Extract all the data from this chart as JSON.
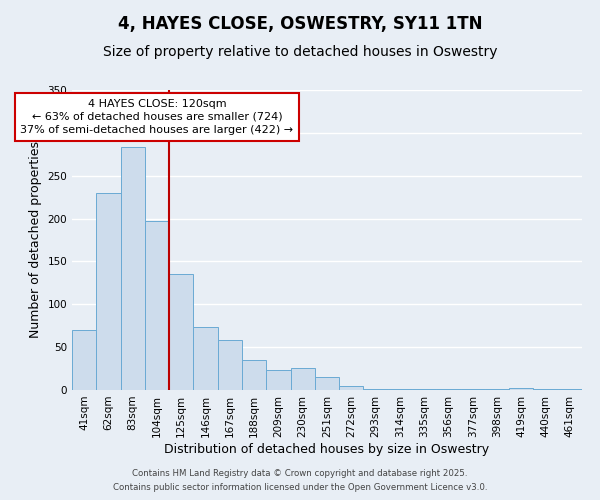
{
  "title": "4, HAYES CLOSE, OSWESTRY, SY11 1TN",
  "subtitle": "Size of property relative to detached houses in Oswestry",
  "xlabel": "Distribution of detached houses by size in Oswestry",
  "ylabel": "Number of detached properties",
  "bar_labels": [
    "41sqm",
    "62sqm",
    "83sqm",
    "104sqm",
    "125sqm",
    "146sqm",
    "167sqm",
    "188sqm",
    "209sqm",
    "230sqm",
    "251sqm",
    "272sqm",
    "293sqm",
    "314sqm",
    "335sqm",
    "356sqm",
    "377sqm",
    "398sqm",
    "419sqm",
    "440sqm",
    "461sqm"
  ],
  "bar_heights": [
    70,
    230,
    283,
    197,
    135,
    74,
    58,
    35,
    23,
    26,
    15,
    5,
    1,
    1,
    1,
    1,
    1,
    1,
    2,
    1,
    1
  ],
  "bar_color": "#cddcec",
  "bar_edge_color": "#6aaad4",
  "vline_color": "#bb0000",
  "annotation_title": "4 HAYES CLOSE: 120sqm",
  "annotation_line1": "← 63% of detached houses are smaller (724)",
  "annotation_line2": "37% of semi-detached houses are larger (422) →",
  "annotation_box_color": "#cc0000",
  "ylim": [
    0,
    350
  ],
  "yticks": [
    0,
    50,
    100,
    150,
    200,
    250,
    300,
    350
  ],
  "footnote1": "Contains HM Land Registry data © Crown copyright and database right 2025.",
  "footnote2": "Contains public sector information licensed under the Open Government Licence v3.0.",
  "bg_color": "#e8eef5",
  "plot_bg_color": "#e8eef5",
  "grid_color": "#ffffff",
  "title_fontsize": 12,
  "subtitle_fontsize": 10,
  "label_fontsize": 9,
  "tick_fontsize": 7.5,
  "annotation_fontsize": 8
}
